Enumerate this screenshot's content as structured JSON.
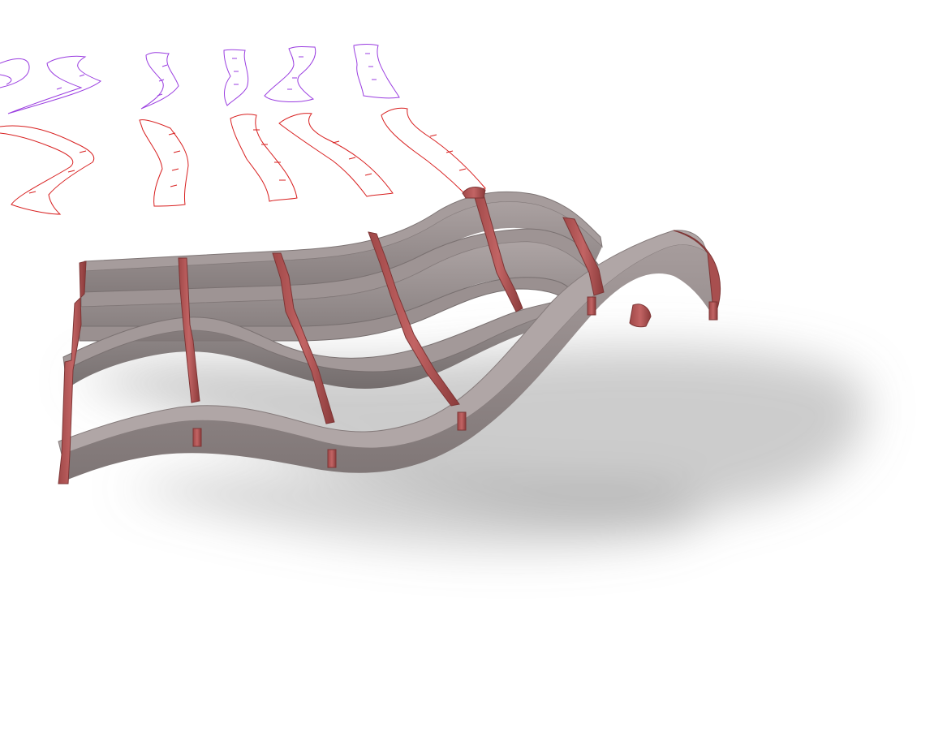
{
  "viewport": {
    "background": "#ffffff",
    "shadow_color": "#8a8a8a"
  },
  "colors": {
    "rib_face": "#8e8585",
    "rib_face_light": "#a69c9c",
    "rib_face_dark": "#6f6666",
    "rib_top": "#aaa1a1",
    "spar_red": "#b35a5a",
    "spar_red_dark": "#8a3a3a",
    "flat_profile_red": "#d81f1f",
    "flat_profile_purple": "#9a3de0"
  },
  "icons": {
    "red_flat_profiles": "flat-cut-profile-icon",
    "purple_flat_profiles": "flat-cut-profile-icon"
  }
}
